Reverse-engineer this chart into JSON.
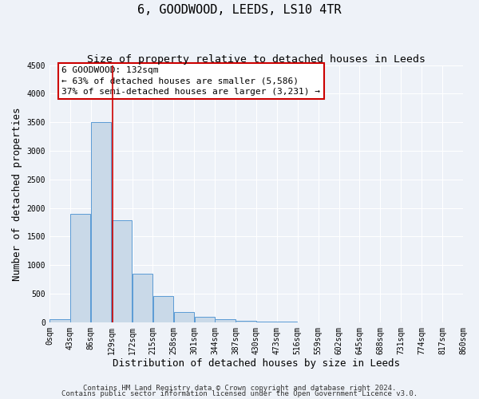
{
  "title": "6, GOODWOOD, LEEDS, LS10 4TR",
  "subtitle": "Size of property relative to detached houses in Leeds",
  "xlabel": "Distribution of detached houses by size in Leeds",
  "ylabel": "Number of detached properties",
  "bin_edges": [
    0,
    43,
    86,
    129,
    172,
    215,
    258,
    301,
    344,
    387,
    430,
    473,
    516,
    559,
    602,
    645,
    688,
    731,
    774,
    817,
    860
  ],
  "bar_heights": [
    50,
    1900,
    3500,
    1780,
    850,
    460,
    175,
    90,
    55,
    30,
    10,
    5,
    3,
    2,
    1,
    1,
    1,
    1,
    1,
    1
  ],
  "bar_color": "#c9d9e8",
  "bar_edge_color": "#5b9bd5",
  "property_line_x": 132,
  "property_line_color": "#cc0000",
  "ylim": [
    0,
    4500
  ],
  "annotation_title": "6 GOODWOOD: 132sqm",
  "annotation_line1": "← 63% of detached houses are smaller (5,586)",
  "annotation_line2": "37% of semi-detached houses are larger (3,231) →",
  "annotation_box_color": "#ffffff",
  "annotation_box_edge_color": "#cc0000",
  "footnote1": "Contains HM Land Registry data © Crown copyright and database right 2024.",
  "footnote2": "Contains public sector information licensed under the Open Government Licence v3.0.",
  "tick_labels": [
    "0sqm",
    "43sqm",
    "86sqm",
    "129sqm",
    "172sqm",
    "215sqm",
    "258sqm",
    "301sqm",
    "344sqm",
    "387sqm",
    "430sqm",
    "473sqm",
    "516sqm",
    "559sqm",
    "602sqm",
    "645sqm",
    "688sqm",
    "731sqm",
    "774sqm",
    "817sqm",
    "860sqm"
  ],
  "background_color": "#eef2f8",
  "grid_color": "#ffffff",
  "title_fontsize": 11,
  "subtitle_fontsize": 9.5,
  "axis_label_fontsize": 9,
  "tick_fontsize": 7,
  "annotation_fontsize": 8,
  "footnote_fontsize": 6.5,
  "yticks": [
    0,
    500,
    1000,
    1500,
    2000,
    2500,
    3000,
    3500,
    4000,
    4500
  ]
}
